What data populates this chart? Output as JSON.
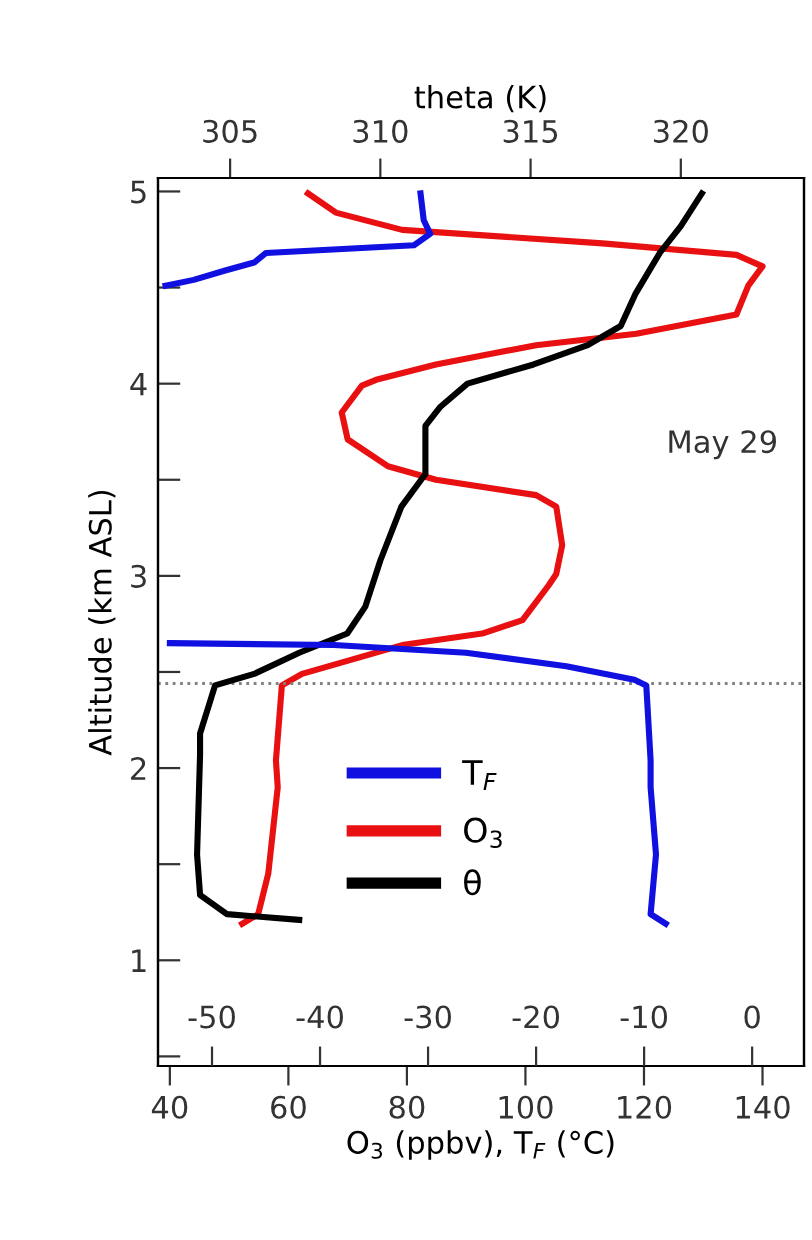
{
  "chart_data": [
    {
      "type": "line",
      "xlabel": "O$_{3}$ (ppbv), T$_{F}$ (°C)",
      "ylabel": "Altitude (km ASL)",
      "x2label": "theta (K)",
      "xlim": [
        38,
        147
      ],
      "xticks": [
        40,
        60,
        80,
        100,
        120,
        140
      ],
      "x2lim": [
        302.6,
        324.1
      ],
      "x2ticks": [
        305,
        310,
        315,
        320
      ],
      "ylim": [
        0.45,
        5.07
      ],
      "yticks": [
        {
          "value": 0.5,
          "label": null
        },
        1,
        {
          "value": 1.5,
          "label": null
        },
        2,
        {
          "value": 2.5,
          "label": null
        },
        3,
        {
          "value": 3.5,
          "label": null
        },
        4,
        {
          "value": 4.5,
          "label": null
        },
        5
      ],
      "grid": false,
      "legend": "bottom left",
      "marker": "none",
      "line_style": "solid",
      "ref_lines": [
        {
          "axis": "y",
          "value": 2.44,
          "color": "#808080",
          "line_style": "dotted"
        }
      ],
      "annotations": [
        "May 29"
      ],
      "series": [
        {
          "name": "O$_{3}$",
          "color": "#e81010",
          "x": [
            63.3,
            68,
            79.2,
            113,
            135.6,
            140,
            137.6,
            135.6,
            118.7,
            101.8,
            84.9,
            74.8,
            72.4,
            69,
            70,
            76.8,
            84.9,
            101.8,
            105.2,
            106.2,
            105.2,
            103.9,
            99.5,
            92.7,
            79.2,
            62.3,
            58.9,
            57.9,
            58.2,
            56.6,
            54.9,
            52.2
          ],
          "values": [
            4.99,
            4.89,
            4.8,
            4.73,
            4.67,
            4.61,
            4.51,
            4.36,
            4.26,
            4.2,
            4.1,
            4.02,
            3.99,
            3.85,
            3.71,
            3.57,
            3.5,
            3.42,
            3.36,
            3.16,
            3.01,
            2.95,
            2.77,
            2.7,
            2.64,
            2.49,
            2.43,
            2.04,
            1.9,
            1.45,
            1.24,
            1.19
          ]
        },
        {
          "name": "θ",
          "color": "#000000",
          "axis": "x2",
          "x": [
            320.7,
            320,
            319.3,
            318.5,
            318,
            316.9,
            315.1,
            312.9,
            312,
            311.5,
            311.5,
            310.7,
            310,
            309.5,
            308.9,
            307.3,
            305.8,
            304.5,
            304,
            304,
            303.9,
            304,
            304.9,
            307.3
          ],
          "values": [
            4.99,
            4.82,
            4.68,
            4.47,
            4.3,
            4.2,
            4.1,
            4.0,
            3.88,
            3.78,
            3.53,
            3.36,
            3.08,
            2.84,
            2.7,
            2.6,
            2.49,
            2.43,
            2.18,
            2.07,
            1.55,
            1.34,
            1.24,
            1.21
          ]
        }
      ]
    },
    {
      "type": "line",
      "xlim": [
        -55,
        4.8
      ],
      "xticks": [
        -50,
        -40,
        -30,
        -20,
        -10,
        0
      ],
      "ylim": [
        0.45,
        5.07
      ],
      "tick_labels": "x",
      "grid": false,
      "legend": "bottom left",
      "marker": "none",
      "line_style": "solid",
      "series": [
        {
          "name": "T$_{F}$",
          "color": "#1010e0",
          "x": [
            -30.7,
            -30.4,
            -29.8,
            -31.3,
            -45,
            -46.1,
            -48.7,
            -51.7,
            -54.3,
            null,
            -53.9,
            -38.7,
            -26.5,
            -17.2,
            -10.9,
            -9.8,
            -9.4,
            -9.4,
            -8.9,
            -9.4,
            -8
          ],
          "values": [
            4.99,
            4.85,
            4.78,
            4.72,
            4.68,
            4.63,
            4.59,
            4.54,
            4.51,
            null,
            2.65,
            2.64,
            2.6,
            2.53,
            2.46,
            2.43,
            2.04,
            1.9,
            1.55,
            1.24,
            1.19
          ]
        }
      ]
    }
  ]
}
